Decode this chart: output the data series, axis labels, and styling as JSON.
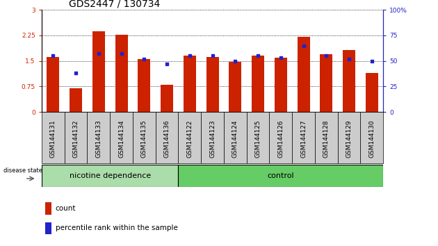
{
  "title": "GDS2447 / 130734",
  "categories": [
    "GSM144131",
    "GSM144132",
    "GSM144133",
    "GSM144134",
    "GSM144135",
    "GSM144136",
    "GSM144122",
    "GSM144123",
    "GSM144124",
    "GSM144125",
    "GSM144126",
    "GSM144127",
    "GSM144128",
    "GSM144129",
    "GSM144130"
  ],
  "red_values": [
    1.62,
    0.7,
    2.37,
    2.27,
    1.55,
    0.8,
    1.65,
    1.62,
    1.47,
    1.65,
    1.6,
    2.2,
    1.7,
    1.82,
    1.15
  ],
  "blue_pct": [
    55,
    38,
    57,
    57,
    52,
    47,
    55,
    55,
    50,
    55,
    53,
    65,
    55,
    52,
    50
  ],
  "group1_label": "nicotine dependence",
  "group2_label": "control",
  "group1_count": 6,
  "group2_count": 9,
  "ylim_left": [
    0,
    3
  ],
  "ylim_right": [
    0,
    100
  ],
  "yticks_left": [
    0,
    0.75,
    1.5,
    2.25,
    3
  ],
  "ytick_labels_left": [
    "0",
    "0.75",
    "1.5",
    "2.25",
    "3"
  ],
  "yticks_right": [
    0,
    25,
    50,
    75,
    100
  ],
  "bar_color": "#cc2200",
  "dot_color": "#2222cc",
  "group1_bg": "#aaddaa",
  "group2_bg": "#66cc66",
  "label_bg": "#cccccc",
  "legend_count_label": "count",
  "legend_pct_label": "percentile rank within the sample",
  "title_fontsize": 10,
  "tick_fontsize": 6.5,
  "label_fontsize": 8
}
